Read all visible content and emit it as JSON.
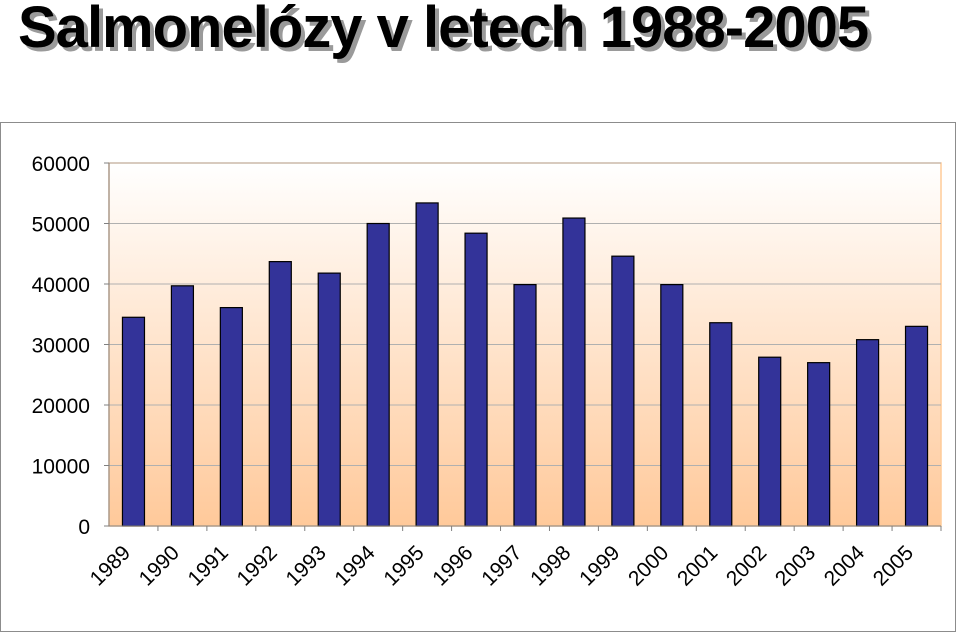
{
  "slide": {
    "title": "Salmonelózy v letech 1988-2005"
  },
  "colors": {
    "bar_fill": "#333399",
    "bar_stroke": "#000000",
    "plot_gradient_top": "#ffffff",
    "plot_gradient_bottom": "#ffc99a",
    "gridline": "#b0b0b0",
    "plot_border": "#ffcc99"
  },
  "chart_data": {
    "type": "bar",
    "title": "",
    "xlabel": "",
    "ylabel": "",
    "categories": [
      "1989",
      "1990",
      "1991",
      "1992",
      "1993",
      "1994",
      "1995",
      "1996",
      "1997",
      "1998",
      "1999",
      "2000",
      "2001",
      "2002",
      "2003",
      "2004",
      "2005"
    ],
    "series": [
      {
        "values": [
          34500,
          39700,
          36100,
          43700,
          41800,
          50000,
          53400,
          48400,
          39900,
          50900,
          44600,
          39900,
          33600,
          27900,
          27000,
          30800,
          33000
        ]
      }
    ],
    "ylim": [
      0,
      60000
    ],
    "yticks": [
      0,
      10000,
      20000,
      30000,
      40000,
      50000,
      60000
    ],
    "grid": true,
    "legend": "none"
  }
}
